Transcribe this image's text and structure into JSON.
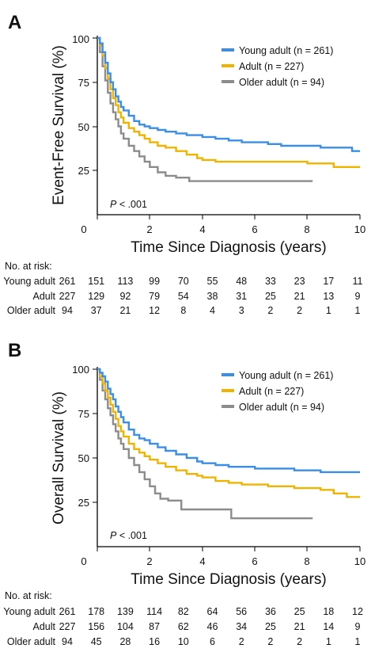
{
  "colors": {
    "young": "#3b8ee6",
    "adult": "#f0b400",
    "older": "#8c8c8c",
    "axis": "#000000"
  },
  "chart_data": [
    {
      "panel": "A",
      "type": "line",
      "step": true,
      "ylabel": "Event-Free Survival (%)",
      "xlabel": "Time Since Diagnosis (years)",
      "xlim": [
        0,
        10
      ],
      "ylim": [
        0,
        100
      ],
      "xticks": [
        0,
        2,
        4,
        6,
        8,
        10
      ],
      "yticks": [
        25,
        50,
        75,
        100
      ],
      "grid": false,
      "legend_position": "top-right",
      "annotation": "P < .001",
      "series": [
        {
          "name": "Young adult (n = 261)",
          "color_key": "young",
          "x": [
            0,
            0.1,
            0.2,
            0.3,
            0.4,
            0.5,
            0.6,
            0.7,
            0.8,
            0.9,
            1.0,
            1.2,
            1.4,
            1.6,
            1.8,
            2.0,
            2.3,
            2.6,
            3.0,
            3.4,
            3.8,
            4.0,
            4.5,
            5.0,
            5.5,
            6.0,
            6.5,
            7.0,
            7.5,
            8.0,
            8.5,
            9.0,
            9.5,
            9.7,
            10.0
          ],
          "y": [
            100,
            97,
            92,
            86,
            80,
            75,
            71,
            67,
            64,
            61,
            59,
            56,
            53,
            51,
            50,
            49,
            48,
            47,
            46,
            45,
            45,
            44,
            43,
            42,
            41,
            41,
            40,
            39,
            39,
            39,
            38,
            38,
            38,
            36,
            36
          ]
        },
        {
          "name": "Adult (n = 227)",
          "color_key": "adult",
          "x": [
            0,
            0.1,
            0.2,
            0.3,
            0.4,
            0.5,
            0.6,
            0.7,
            0.8,
            0.9,
            1.0,
            1.2,
            1.4,
            1.6,
            1.8,
            2.0,
            2.3,
            2.6,
            3.0,
            3.4,
            3.8,
            4.0,
            4.5,
            5.0,
            6.0,
            7.0,
            8.0,
            8.5,
            9.0,
            9.5,
            10.0
          ],
          "y": [
            100,
            96,
            90,
            83,
            77,
            71,
            66,
            62,
            58,
            55,
            52,
            49,
            47,
            45,
            43,
            41,
            39,
            38,
            36,
            34,
            32,
            31,
            30,
            30,
            30,
            30,
            29,
            29,
            27,
            27,
            27
          ]
        },
        {
          "name": "Older adult (n = 94)",
          "color_key": "older",
          "x": [
            0,
            0.1,
            0.2,
            0.3,
            0.4,
            0.5,
            0.6,
            0.7,
            0.8,
            0.9,
            1.0,
            1.2,
            1.4,
            1.6,
            1.8,
            2.0,
            2.3,
            2.6,
            3.0,
            3.5,
            4.0,
            5.0,
            6.0,
            7.0,
            8.2
          ],
          "y": [
            100,
            92,
            84,
            76,
            69,
            63,
            58,
            54,
            50,
            46,
            43,
            39,
            36,
            33,
            30,
            27,
            24,
            22,
            21,
            19,
            19,
            19,
            19,
            19,
            19
          ]
        }
      ],
      "risk_table": {
        "header": "No. at risk:",
        "rows": [
          {
            "label": "Young adult",
            "values": [
              "261",
              "151",
              "113",
              "99",
              "70",
              "55",
              "48",
              "33",
              "23",
              "17",
              "11"
            ]
          },
          {
            "label": "Adult",
            "values": [
              "227",
              "129",
              "92",
              "79",
              "54",
              "38",
              "31",
              "25",
              "21",
              "13",
              "9"
            ]
          },
          {
            "label": "Older adult",
            "values": [
              "94",
              "37",
              "21",
              "12",
              "8",
              "4",
              "3",
              "2",
              "2",
              "1",
              "1"
            ]
          }
        ]
      }
    },
    {
      "panel": "B",
      "type": "line",
      "step": true,
      "ylabel": "Overall Survival (%)",
      "xlabel": "Time Since Diagnosis (years)",
      "xlim": [
        0,
        10
      ],
      "ylim": [
        0,
        100
      ],
      "xticks": [
        0,
        2,
        4,
        6,
        8,
        10
      ],
      "yticks": [
        25,
        50,
        75,
        100
      ],
      "grid": false,
      "legend_position": "top-right",
      "annotation": "P < .001",
      "series": [
        {
          "name": "Young adult (n = 261)",
          "color_key": "young",
          "x": [
            0,
            0.1,
            0.2,
            0.3,
            0.4,
            0.5,
            0.6,
            0.7,
            0.8,
            0.9,
            1.0,
            1.2,
            1.4,
            1.6,
            1.8,
            2.0,
            2.3,
            2.6,
            3.0,
            3.4,
            3.8,
            4.0,
            4.5,
            5.0,
            5.5,
            6.0,
            6.5,
            7.0,
            7.5,
            8.0,
            8.5,
            9.0,
            9.5,
            10.0
          ],
          "y": [
            100,
            98,
            96,
            93,
            89,
            86,
            83,
            79,
            76,
            73,
            70,
            66,
            63,
            61,
            60,
            58,
            56,
            54,
            52,
            50,
            48,
            47,
            46,
            45,
            45,
            44,
            44,
            44,
            43,
            43,
            42,
            42,
            42,
            42
          ]
        },
        {
          "name": "Adult (n = 227)",
          "color_key": "adult",
          "x": [
            0,
            0.1,
            0.2,
            0.3,
            0.4,
            0.5,
            0.6,
            0.7,
            0.8,
            0.9,
            1.0,
            1.2,
            1.4,
            1.6,
            1.8,
            2.0,
            2.3,
            2.6,
            3.0,
            3.4,
            3.8,
            4.0,
            4.5,
            5.0,
            5.5,
            6.0,
            6.5,
            7.0,
            7.5,
            8.0,
            8.5,
            9.0,
            9.5,
            10.0
          ],
          "y": [
            100,
            96,
            92,
            88,
            84,
            80,
            76,
            72,
            68,
            65,
            62,
            58,
            55,
            53,
            51,
            49,
            47,
            45,
            43,
            41,
            40,
            39,
            37,
            36,
            35,
            35,
            34,
            34,
            33,
            33,
            32,
            30,
            28,
            28
          ]
        },
        {
          "name": "Older adult (n = 94)",
          "color_key": "older",
          "x": [
            0,
            0.1,
            0.2,
            0.3,
            0.4,
            0.5,
            0.6,
            0.7,
            0.8,
            0.9,
            1.0,
            1.2,
            1.4,
            1.6,
            1.8,
            2.0,
            2.2,
            2.4,
            2.7,
            3.0,
            3.2,
            4.0,
            5.0,
            5.1,
            6.0,
            7.0,
            8.2
          ],
          "y": [
            100,
            94,
            88,
            83,
            78,
            74,
            69,
            65,
            61,
            58,
            55,
            50,
            46,
            42,
            38,
            34,
            30,
            27,
            26,
            26,
            21,
            21,
            21,
            16,
            16,
            16,
            16
          ]
        }
      ],
      "risk_table": {
        "header": "No. at risk:",
        "rows": [
          {
            "label": "Young adult",
            "values": [
              "261",
              "178",
              "139",
              "114",
              "82",
              "64",
              "56",
              "36",
              "25",
              "18",
              "12"
            ]
          },
          {
            "label": "Adult",
            "values": [
              "227",
              "156",
              "104",
              "87",
              "62",
              "46",
              "34",
              "25",
              "21",
              "14",
              "9"
            ]
          },
          {
            "label": "Older adult",
            "values": [
              "94",
              "45",
              "28",
              "16",
              "10",
              "6",
              "2",
              "2",
              "2",
              "1",
              "1"
            ]
          }
        ]
      }
    }
  ]
}
